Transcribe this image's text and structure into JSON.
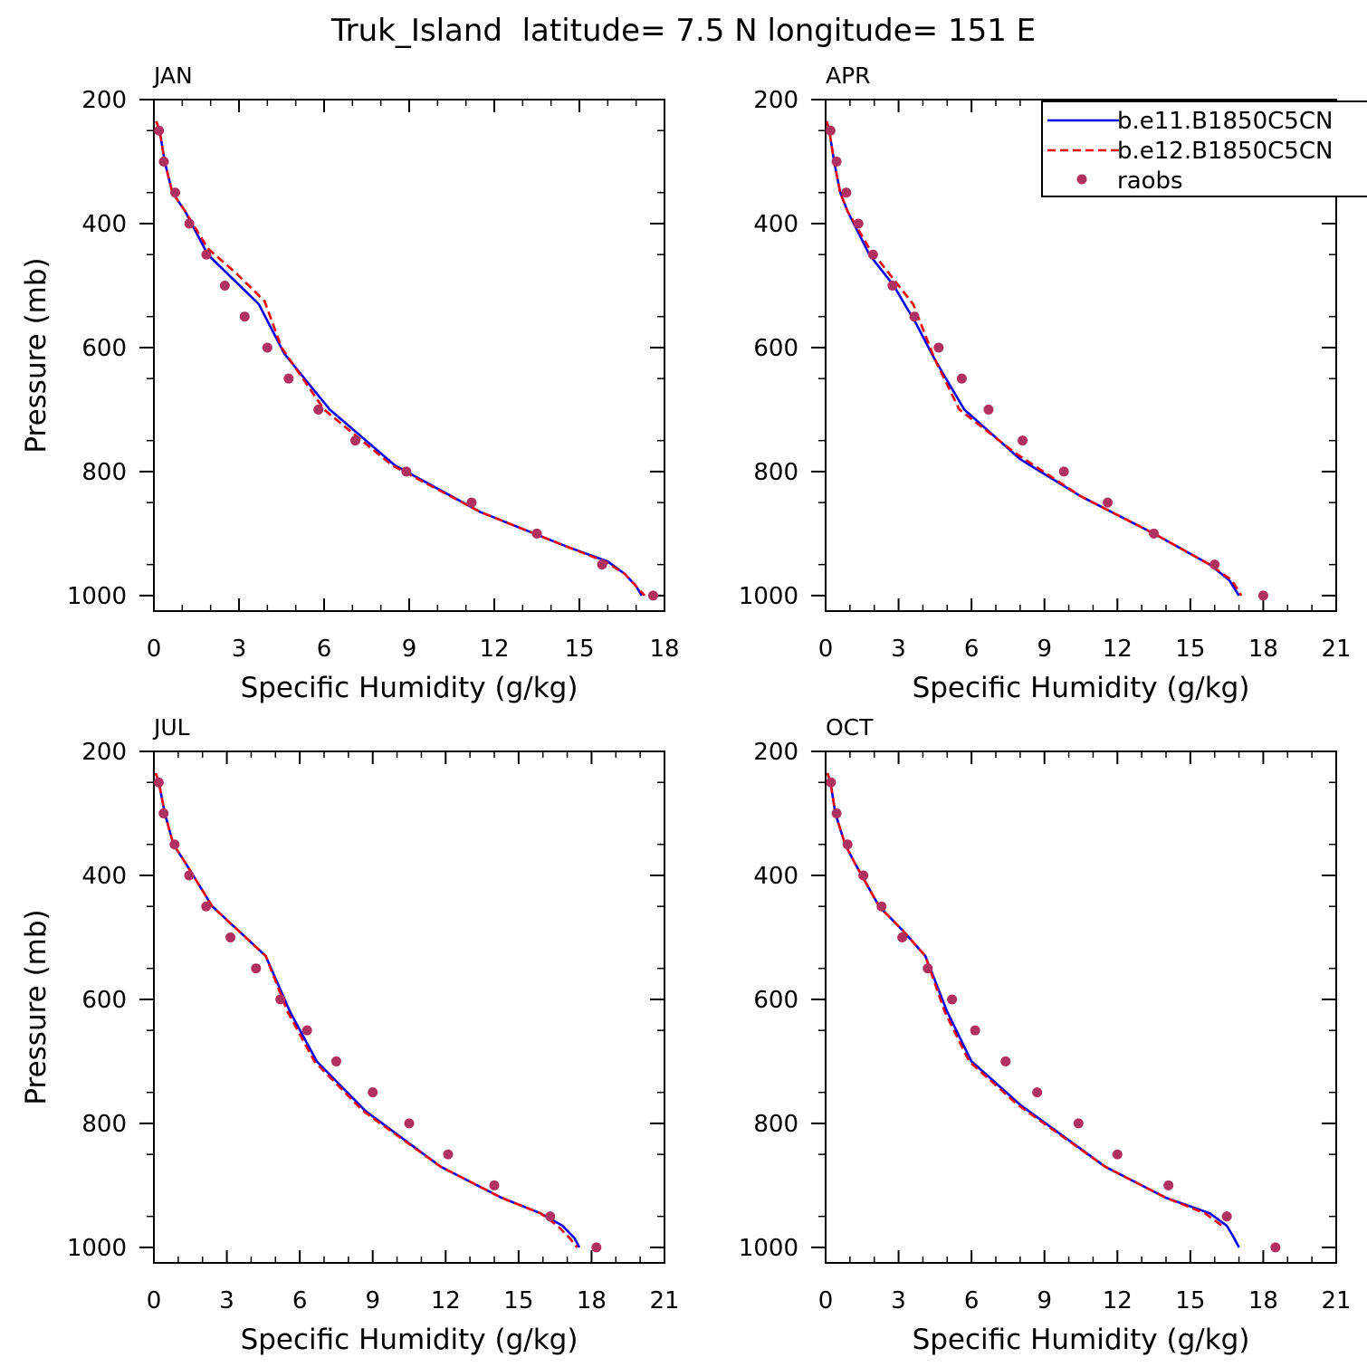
{
  "figure_title": "Truk_Island  latitude= 7.5 N longitude= 151 E",
  "colors": {
    "model1": "#0000ee",
    "model2": "#ee0000",
    "obs": "#b03060",
    "axis": "#000000"
  },
  "chart_data": [
    {
      "type": "line",
      "panel": "JAN",
      "title": "JAN",
      "xlabel": "Specific Humidity (g/kg)",
      "ylabel": "Pressure (mb)",
      "xlim": [
        0,
        18
      ],
      "ylim": [
        200,
        1025
      ],
      "xticks": [
        0,
        3,
        6,
        9,
        12,
        15,
        18
      ],
      "yticks": [
        200,
        400,
        600,
        800,
        1000
      ],
      "legend": false,
      "series": [
        {
          "name": "b.e11.B1850C5CN",
          "style": "solid",
          "x": [
            0.08,
            0.2,
            0.38,
            0.65,
            1.1,
            1.9,
            2.8,
            3.7,
            4.6,
            6.2,
            8.5,
            11.5,
            14.5,
            16,
            16.6,
            17.0,
            17.2
          ],
          "y": [
            235,
            250,
            300,
            350,
            380,
            450,
            490,
            530,
            610,
            700,
            790,
            865,
            920,
            945,
            965,
            985,
            1000
          ]
        },
        {
          "name": "b.e12.B1850C5CN",
          "style": "dashed",
          "x": [
            0.08,
            0.2,
            0.38,
            0.65,
            1.1,
            1.9,
            2.9,
            3.9,
            4.5,
            6.0,
            8.4,
            11.5,
            14.5,
            15.9,
            16.6,
            17.0,
            17.3
          ],
          "y": [
            235,
            250,
            300,
            350,
            380,
            440,
            480,
            525,
            600,
            700,
            790,
            865,
            920,
            945,
            965,
            985,
            1000
          ]
        },
        {
          "name": "raobs",
          "style": "markers",
          "x": [
            0.18,
            0.35,
            0.75,
            1.25,
            1.85,
            2.5,
            3.2,
            4.0,
            4.75,
            5.8,
            7.1,
            8.9,
            11.2,
            13.5,
            15.8,
            17.6
          ],
          "y": [
            250,
            300,
            350,
            400,
            450,
            500,
            550,
            600,
            650,
            700,
            750,
            800,
            850,
            900,
            950,
            1000
          ]
        }
      ]
    },
    {
      "type": "line",
      "panel": "APR",
      "title": "APR",
      "xlabel": "Specific Humidity (g/kg)",
      "ylabel": "",
      "xlim": [
        0,
        21
      ],
      "ylim": [
        200,
        1025
      ],
      "xticks": [
        0,
        3,
        6,
        9,
        12,
        15,
        18,
        21
      ],
      "yticks": [
        200,
        400,
        600,
        800,
        1000
      ],
      "legend": true,
      "legend_position": "top-right",
      "series": [
        {
          "name": "b.e11.B1850C5CN",
          "style": "solid",
          "x": [
            0.05,
            0.15,
            0.35,
            0.6,
            0.9,
            1.8,
            2.8,
            3.7,
            4.5,
            5.7,
            8.0,
            10.5,
            13.5,
            15.8,
            16.6,
            17.0
          ],
          "y": [
            235,
            250,
            300,
            350,
            380,
            450,
            500,
            560,
            620,
            700,
            780,
            840,
            900,
            950,
            975,
            1000
          ]
        },
        {
          "name": "b.e12.B1850C5CN",
          "style": "dashed",
          "x": [
            0.05,
            0.15,
            0.35,
            0.6,
            0.9,
            1.8,
            2.8,
            3.6,
            4.5,
            5.5,
            7.8,
            10.5,
            13.5,
            15.8,
            16.7,
            17.1
          ],
          "y": [
            235,
            250,
            300,
            350,
            380,
            440,
            490,
            530,
            620,
            700,
            770,
            840,
            900,
            950,
            975,
            1000
          ]
        },
        {
          "name": "raobs",
          "style": "markers",
          "x": [
            0.2,
            0.45,
            0.85,
            1.35,
            1.95,
            2.75,
            3.65,
            4.65,
            5.6,
            6.7,
            8.1,
            9.8,
            11.6,
            13.5,
            16.0,
            18.0
          ],
          "y": [
            250,
            300,
            350,
            400,
            450,
            500,
            550,
            600,
            650,
            700,
            750,
            800,
            850,
            900,
            950,
            1000
          ]
        }
      ]
    },
    {
      "type": "line",
      "panel": "JUL",
      "title": "JUL",
      "xlabel": "Specific Humidity (g/kg)",
      "ylabel": "Pressure (mb)",
      "xlim": [
        0,
        21
      ],
      "ylim": [
        200,
        1025
      ],
      "xticks": [
        0,
        3,
        6,
        9,
        12,
        15,
        18,
        21
      ],
      "yticks": [
        200,
        400,
        600,
        800,
        1000
      ],
      "legend": false,
      "series": [
        {
          "name": "b.e11.B1850C5CN",
          "style": "solid",
          "x": [
            0.08,
            0.2,
            0.45,
            0.8,
            1.3,
            2.4,
            3.5,
            4.6,
            5.6,
            6.7,
            8.7,
            11.8,
            14.3,
            15.9,
            16.8,
            17.3,
            17.5
          ],
          "y": [
            235,
            250,
            300,
            350,
            380,
            450,
            490,
            530,
            620,
            700,
            780,
            870,
            920,
            945,
            965,
            985,
            1000
          ]
        },
        {
          "name": "b.e12.B1850C5CN",
          "style": "dashed",
          "x": [
            0.08,
            0.2,
            0.45,
            0.8,
            1.3,
            2.4,
            3.5,
            4.6,
            5.5,
            6.6,
            8.6,
            11.8,
            14.3,
            15.9,
            16.6,
            17.1,
            17.4
          ],
          "y": [
            235,
            250,
            300,
            350,
            380,
            450,
            490,
            530,
            620,
            700,
            780,
            870,
            920,
            945,
            965,
            985,
            1000
          ]
        },
        {
          "name": "raobs",
          "style": "markers",
          "x": [
            0.2,
            0.4,
            0.85,
            1.45,
            2.15,
            3.15,
            4.2,
            5.2,
            6.3,
            7.5,
            9.0,
            10.5,
            12.1,
            14.0,
            16.3,
            18.2
          ],
          "y": [
            250,
            300,
            350,
            400,
            450,
            500,
            550,
            600,
            650,
            700,
            750,
            800,
            850,
            900,
            950,
            1000
          ]
        }
      ]
    },
    {
      "type": "line",
      "panel": "OCT",
      "title": "OCT",
      "xlabel": "Specific Humidity (g/kg)",
      "ylabel": "",
      "xlim": [
        0,
        21
      ],
      "ylim": [
        200,
        1025
      ],
      "xticks": [
        0,
        3,
        6,
        9,
        12,
        15,
        18,
        21
      ],
      "yticks": [
        200,
        400,
        600,
        800,
        1000
      ],
      "legend": false,
      "series": [
        {
          "name": "b.e11.B1850C5CN",
          "style": "solid",
          "x": [
            0.08,
            0.2,
            0.4,
            0.8,
            1.2,
            2.2,
            3.2,
            4.1,
            5.0,
            6.0,
            8.0,
            11.5,
            14.0,
            15.8,
            16.5,
            16.8,
            17.0
          ],
          "y": [
            235,
            250,
            300,
            350,
            380,
            450,
            490,
            530,
            620,
            700,
            770,
            870,
            920,
            945,
            965,
            985,
            1000
          ]
        },
        {
          "name": "b.e12.B1850C5CN",
          "style": "dashed",
          "x": [
            0.08,
            0.2,
            0.4,
            0.8,
            1.2,
            2.2,
            3.2,
            4.1,
            4.9,
            5.9,
            7.9,
            11.5,
            14.0,
            15.6,
            16.3
          ],
          "y": [
            235,
            250,
            300,
            350,
            380,
            450,
            490,
            530,
            620,
            700,
            770,
            870,
            920,
            945,
            965
          ]
        },
        {
          "name": "raobs",
          "style": "markers",
          "x": [
            0.22,
            0.45,
            0.9,
            1.55,
            2.3,
            3.15,
            4.2,
            5.2,
            6.15,
            7.4,
            8.7,
            10.4,
            12.0,
            14.1,
            16.5,
            18.5
          ],
          "y": [
            250,
            300,
            350,
            400,
            450,
            500,
            550,
            600,
            650,
            700,
            750,
            800,
            850,
            900,
            950,
            1000
          ]
        }
      ]
    }
  ]
}
